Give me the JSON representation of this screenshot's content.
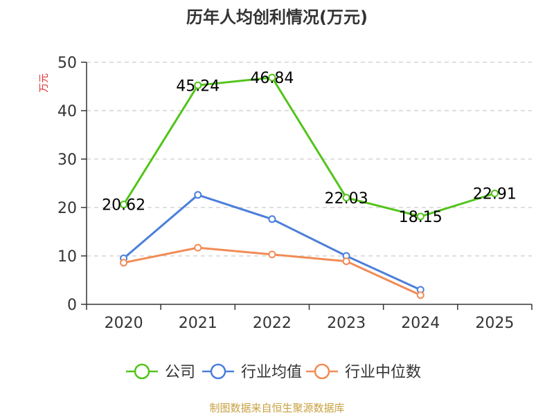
{
  "chart_data": {
    "type": "line",
    "title": "历年人均创利情况(万元)",
    "ylabel": "万元",
    "xlabel": "",
    "ylim": [
      0,
      50
    ],
    "yticks": [
      0,
      10,
      20,
      30,
      40,
      50
    ],
    "grid": true,
    "categories": [
      "2020",
      "2021",
      "2022",
      "2023",
      "2024",
      "2025"
    ],
    "series": [
      {
        "name": "公司",
        "color": "#52c41a",
        "values": [
          20.62,
          45.24,
          46.84,
          22.03,
          18.15,
          22.91
        ],
        "labels": [
          "20.62",
          "45.24",
          "46.84",
          "22.03",
          "18.15",
          "22.91"
        ]
      },
      {
        "name": "行业均值",
        "color": "#4a7fdb",
        "values": [
          9.5,
          22.6,
          17.6,
          10.0,
          3.0,
          null
        ]
      },
      {
        "name": "行业中位数",
        "color": "#f28b55",
        "values": [
          8.6,
          11.7,
          10.3,
          8.9,
          1.9,
          null
        ]
      }
    ],
    "legend_position": "bottom",
    "source": "制图数据来自恒生聚源数据库",
    "colors": {
      "ylabel": "#e03030",
      "source": "#c8a040",
      "axis": "#333333",
      "grid": "#cccccc"
    }
  }
}
